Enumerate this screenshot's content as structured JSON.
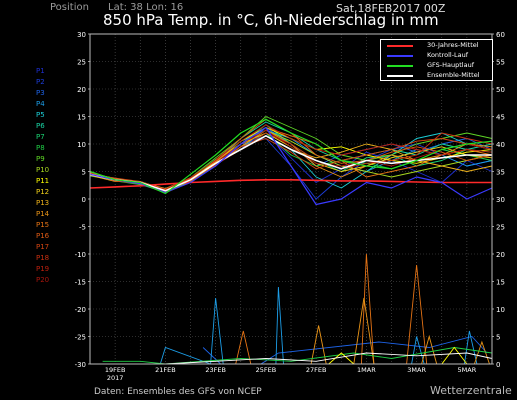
{
  "header": {
    "position_label": "Position",
    "latlon": "Lat: 38 Lon: 16",
    "run": "Sat,18FEB2017 00Z",
    "title": "850 hPa Temp. in °C, 6h-Niederschlag in mm"
  },
  "footer": {
    "source": "Daten: Ensembles des GFS von NCEP",
    "brand": "Wetterzentrale"
  },
  "members": [
    {
      "label": "P1",
      "color": "#1e2fd0"
    },
    {
      "label": "P2",
      "color": "#1c3dd8"
    },
    {
      "label": "P3",
      "color": "#1d62e6"
    },
    {
      "label": "P4",
      "color": "#1c9ee8"
    },
    {
      "label": "P5",
      "color": "#1ccfd7"
    },
    {
      "label": "P6",
      "color": "#19d6a6"
    },
    {
      "label": "P7",
      "color": "#1bd473"
    },
    {
      "label": "P8",
      "color": "#1fce46"
    },
    {
      "label": "P9",
      "color": "#5ed625"
    },
    {
      "label": "P10",
      "color": "#a7d820"
    },
    {
      "label": "P11",
      "color": "#ffff00"
    },
    {
      "label": "P12",
      "color": "#f2d21b"
    },
    {
      "label": "P13",
      "color": "#eeb21a"
    },
    {
      "label": "P14",
      "color": "#e99417"
    },
    {
      "label": "P15",
      "color": "#e57315"
    },
    {
      "label": "P16",
      "color": "#de5a14"
    },
    {
      "label": "P17",
      "color": "#d44512"
    },
    {
      "label": "P18",
      "color": "#c93010"
    },
    {
      "label": "P19",
      "color": "#bd200e"
    },
    {
      "label": "P20",
      "color": "#a8150c"
    }
  ],
  "legend": [
    {
      "label": "30-Jahres-Mittel",
      "color": "#ff2a2a"
    },
    {
      "label": "Kontroll-Lauf",
      "color": "#3a3aff"
    },
    {
      "label": "GFS-Hauptlauf",
      "color": "#22dd22"
    },
    {
      "label": "Ensemble-Mittel",
      "color": "#ffffff"
    }
  ],
  "chart_data": {
    "type": "line",
    "ylim": [
      -30,
      30
    ],
    "yticks": [
      -30,
      -25,
      -20,
      -15,
      -10,
      -5,
      0,
      5,
      10,
      15,
      20,
      25,
      30
    ],
    "y2ticks": [
      0,
      5,
      10,
      15,
      20,
      25,
      30,
      35,
      40,
      45,
      50,
      55,
      60
    ],
    "y2lim": [
      0,
      60
    ],
    "xlim_days": [
      0,
      16
    ],
    "xticks": [
      {
        "day": 1,
        "label": "19FEB",
        "sub": "2017"
      },
      {
        "day": 3,
        "label": "21FEB"
      },
      {
        "day": 5,
        "label": "23FEB"
      },
      {
        "day": 7,
        "label": "25FEB"
      },
      {
        "day": 9,
        "label": "27FEB"
      },
      {
        "day": 11,
        "label": "1MAR"
      },
      {
        "day": 13,
        "label": "3MAR"
      },
      {
        "day": 15,
        "label": "5MAR"
      }
    ],
    "x_days": [
      0,
      1,
      2,
      3,
      4,
      5,
      6,
      7,
      8,
      9,
      10,
      11,
      12,
      13,
      14,
      15,
      16
    ],
    "series": [
      {
        "name": "30-Jahres-Mittel",
        "color": "#ff2a2a",
        "width": 1.6,
        "values": [
          2.0,
          2.2,
          2.4,
          2.7,
          3.0,
          3.2,
          3.4,
          3.5,
          3.5,
          3.4,
          3.3,
          3.3,
          3.2,
          3.1,
          3.0,
          3.0,
          3.0
        ]
      },
      {
        "name": "Ensemble-Mittel",
        "color": "#ffffff",
        "width": 1.6,
        "values": [
          4.5,
          3.5,
          3.0,
          1.5,
          3.5,
          6.5,
          9.0,
          11.5,
          9.0,
          7.0,
          5.5,
          7.0,
          6.5,
          7.0,
          7.5,
          8.0,
          8.0
        ]
      },
      {
        "name": "Kontroll-Lauf",
        "color": "#3a3aff",
        "width": 1.2,
        "values": [
          4.5,
          3.5,
          2.8,
          1.2,
          3.0,
          6.0,
          10.0,
          13.0,
          6.0,
          -1.0,
          0.0,
          3.0,
          2.0,
          4.0,
          3.0,
          0.0,
          2.0
        ]
      },
      {
        "name": "GFS-Hauptlauf",
        "color": "#22dd22",
        "width": 1.2,
        "values": [
          5.0,
          3.5,
          3.0,
          1.0,
          4.5,
          8.0,
          12.0,
          14.5,
          12.0,
          10.0,
          7.0,
          6.0,
          5.5,
          7.0,
          9.0,
          10.0,
          10.5
        ]
      },
      {
        "name": "P1",
        "color": "#1e2fd0",
        "width": 0.9,
        "values": [
          4.7,
          3.6,
          2.9,
          1.6,
          3.6,
          6.4,
          9.5,
          12.0,
          7.5,
          3.0,
          5.5,
          8.5,
          7.0,
          5.0,
          3.0,
          7.0,
          5.0
        ]
      },
      {
        "name": "P2",
        "color": "#1c3dd8",
        "width": 0.9,
        "values": [
          4.4,
          3.3,
          2.8,
          1.4,
          3.2,
          6.0,
          10.0,
          11.0,
          6.0,
          0.0,
          4.0,
          7.0,
          9.0,
          10.0,
          8.0,
          6.0,
          7.0
        ]
      },
      {
        "name": "P3",
        "color": "#1d62e6",
        "width": 0.9,
        "values": [
          4.6,
          3.4,
          3.1,
          1.8,
          3.5,
          6.8,
          9.0,
          13.0,
          10.0,
          6.0,
          8.0,
          9.0,
          10.0,
          8.5,
          10.0,
          11.0,
          9.0
        ]
      },
      {
        "name": "P4",
        "color": "#1c9ee8",
        "width": 0.9,
        "values": [
          4.3,
          3.7,
          2.7,
          1.2,
          3.8,
          7.0,
          10.5,
          12.5,
          11.0,
          8.0,
          6.0,
          5.0,
          7.0,
          9.0,
          8.0,
          6.0,
          7.0
        ]
      },
      {
        "name": "P5",
        "color": "#1ccfd7",
        "width": 0.9,
        "values": [
          4.8,
          3.5,
          3.0,
          1.9,
          3.4,
          6.2,
          9.5,
          11.5,
          9.0,
          4.0,
          2.0,
          5.0,
          8.0,
          11.0,
          12.0,
          10.0,
          9.0
        ]
      },
      {
        "name": "P6",
        "color": "#19d6a6",
        "width": 0.9,
        "values": [
          4.5,
          3.8,
          2.9,
          1.5,
          3.3,
          6.6,
          11.0,
          14.0,
          12.0,
          9.0,
          7.0,
          8.0,
          9.0,
          8.0,
          10.0,
          9.0,
          10.0
        ]
      },
      {
        "name": "P7",
        "color": "#1bd473",
        "width": 0.9,
        "values": [
          4.2,
          3.4,
          3.2,
          1.7,
          3.7,
          7.2,
          10.0,
          13.5,
          10.0,
          7.0,
          5.0,
          7.5,
          8.0,
          6.0,
          7.0,
          9.0,
          8.5
        ]
      },
      {
        "name": "P8",
        "color": "#1fce46",
        "width": 0.9,
        "values": [
          4.6,
          3.3,
          2.6,
          1.3,
          3.1,
          6.5,
          9.0,
          12.0,
          8.0,
          6.0,
          7.0,
          6.5,
          5.5,
          7.0,
          9.0,
          8.0,
          7.0
        ]
      },
      {
        "name": "P9",
        "color": "#5ed625",
        "width": 0.9,
        "values": [
          4.9,
          3.6,
          3.1,
          1.8,
          3.9,
          7.5,
          11.0,
          15.0,
          13.0,
          11.0,
          8.0,
          7.0,
          8.0,
          10.0,
          11.0,
          12.0,
          11.0
        ]
      },
      {
        "name": "P10",
        "color": "#a7d820",
        "width": 0.9,
        "values": [
          4.4,
          3.5,
          2.8,
          1.1,
          3.2,
          6.3,
          9.5,
          12.5,
          10.5,
          8.0,
          6.0,
          5.0,
          4.0,
          5.0,
          6.0,
          7.0,
          8.0
        ]
      },
      {
        "name": "P11",
        "color": "#ffff00",
        "width": 0.9,
        "values": [
          4.5,
          3.4,
          3.0,
          1.6,
          3.6,
          6.7,
          10.5,
          13.0,
          11.0,
          9.0,
          9.5,
          8.0,
          7.0,
          6.5,
          7.5,
          8.5,
          9.0
        ]
      },
      {
        "name": "P12",
        "color": "#f2d21b",
        "width": 0.9,
        "values": [
          4.7,
          3.7,
          2.9,
          1.4,
          3.5,
          6.9,
          10.0,
          12.0,
          9.5,
          6.5,
          5.0,
          6.0,
          7.5,
          8.5,
          9.5,
          8.0,
          7.5
        ]
      },
      {
        "name": "P13",
        "color": "#eeb21a",
        "width": 0.9,
        "values": [
          4.3,
          3.2,
          3.1,
          1.9,
          3.8,
          6.4,
          9.0,
          11.5,
          9.0,
          7.5,
          8.5,
          10.0,
          9.0,
          7.0,
          6.0,
          5.0,
          6.0
        ]
      },
      {
        "name": "P14",
        "color": "#e99417",
        "width": 0.9,
        "values": [
          4.6,
          3.5,
          2.7,
          1.5,
          3.4,
          6.1,
          9.5,
          12.5,
          10.0,
          6.0,
          4.0,
          6.0,
          8.0,
          7.0,
          8.0,
          10.0,
          9.5
        ]
      },
      {
        "name": "P15",
        "color": "#e57315",
        "width": 0.9,
        "values": [
          4.8,
          3.6,
          3.0,
          1.2,
          3.0,
          6.8,
          10.0,
          13.0,
          11.5,
          10.0,
          7.0,
          4.0,
          5.0,
          6.0,
          8.0,
          9.0,
          8.0
        ]
      },
      {
        "name": "P16",
        "color": "#de5a14",
        "width": 0.9,
        "values": [
          4.5,
          3.4,
          2.9,
          1.7,
          3.7,
          7.1,
          11.0,
          14.5,
          12.0,
          8.0,
          6.5,
          7.0,
          8.5,
          9.5,
          8.5,
          7.0,
          8.0
        ]
      },
      {
        "name": "P17",
        "color": "#d44512",
        "width": 0.9,
        "values": [
          4.4,
          3.8,
          3.2,
          1.6,
          3.3,
          6.6,
          9.5,
          11.0,
          8.5,
          5.5,
          7.0,
          8.0,
          9.0,
          10.5,
          11.0,
          10.0,
          9.0
        ]
      },
      {
        "name": "P18",
        "color": "#c93010",
        "width": 0.9,
        "values": [
          4.6,
          3.3,
          2.8,
          1.3,
          3.6,
          6.2,
          9.0,
          12.0,
          10.0,
          7.0,
          5.5,
          6.5,
          7.0,
          8.0,
          12.0,
          11.0,
          10.0
        ]
      },
      {
        "name": "P19",
        "color": "#bd200e",
        "width": 0.9,
        "values": [
          4.7,
          3.5,
          3.0,
          1.8,
          3.9,
          7.0,
          10.5,
          13.5,
          11.0,
          9.0,
          8.0,
          9.0,
          10.0,
          9.0,
          8.0,
          9.0,
          8.5
        ]
      },
      {
        "name": "P20",
        "color": "#a8150c",
        "width": 0.9,
        "values": [
          4.5,
          3.6,
          2.9,
          1.5,
          3.4,
          6.5,
          10.0,
          12.5,
          9.5,
          6.5,
          6.0,
          7.0,
          6.0,
          7.5,
          9.0,
          10.0,
          9.0
        ]
      }
    ],
    "precip_mm": [
      {
        "color": "#1d62e6",
        "points": [
          [
            4.5,
            3
          ],
          [
            5.2,
            0
          ],
          [
            6.8,
            0
          ],
          [
            7.5,
            2
          ],
          [
            11.5,
            4
          ],
          [
            13.5,
            3
          ],
          [
            15.2,
            5
          ],
          [
            15.8,
            2
          ]
        ]
      },
      {
        "color": "#1c9ee8",
        "points": [
          [
            2.8,
            0
          ],
          [
            3.0,
            3
          ],
          [
            4.8,
            0
          ],
          [
            5.0,
            12
          ],
          [
            5.3,
            0
          ],
          [
            7.4,
            0
          ],
          [
            7.5,
            14
          ],
          [
            7.7,
            0
          ],
          [
            12.8,
            0
          ],
          [
            13.0,
            5
          ],
          [
            13.3,
            0
          ],
          [
            14.9,
            0
          ],
          [
            15.1,
            6
          ],
          [
            15.4,
            0
          ]
        ]
      },
      {
        "color": "#e57315",
        "points": [
          [
            5.8,
            0
          ],
          [
            6.1,
            6
          ],
          [
            6.4,
            0
          ],
          [
            10.8,
            0
          ],
          [
            11.0,
            20
          ],
          [
            11.3,
            0
          ],
          [
            12.6,
            0
          ],
          [
            13.0,
            18
          ],
          [
            13.4,
            0
          ]
        ]
      },
      {
        "color": "#e99417",
        "points": [
          [
            8.8,
            0
          ],
          [
            9.1,
            7
          ],
          [
            9.4,
            0
          ],
          [
            10.5,
            0
          ],
          [
            10.9,
            12
          ],
          [
            11.3,
            0
          ],
          [
            13.2,
            0
          ],
          [
            13.5,
            5
          ],
          [
            13.8,
            0
          ],
          [
            15.3,
            0
          ],
          [
            15.6,
            4
          ],
          [
            15.9,
            0
          ]
        ]
      },
      {
        "color": "#1fce46",
        "points": [
          [
            0.5,
            0.5
          ],
          [
            2.0,
            0.5
          ],
          [
            3.0,
            0
          ],
          [
            6.0,
            1
          ],
          [
            8.0,
            0.5
          ],
          [
            10.5,
            2
          ],
          [
            12.0,
            1
          ],
          [
            14.5,
            3
          ],
          [
            16.0,
            2
          ]
        ]
      },
      {
        "color": "#ffff00",
        "points": [
          [
            9.5,
            0
          ],
          [
            10.0,
            2
          ],
          [
            10.5,
            0
          ],
          [
            14.0,
            0
          ],
          [
            14.5,
            3
          ],
          [
            15.0,
            0
          ]
        ]
      },
      {
        "color": "#ffffff",
        "points": [
          [
            3.0,
            0
          ],
          [
            5.0,
            0.5
          ],
          [
            7.0,
            1
          ],
          [
            9.0,
            0.5
          ],
          [
            11.0,
            2
          ],
          [
            13.0,
            1.5
          ],
          [
            15.0,
            2
          ],
          [
            16.0,
            1
          ]
        ]
      }
    ]
  }
}
